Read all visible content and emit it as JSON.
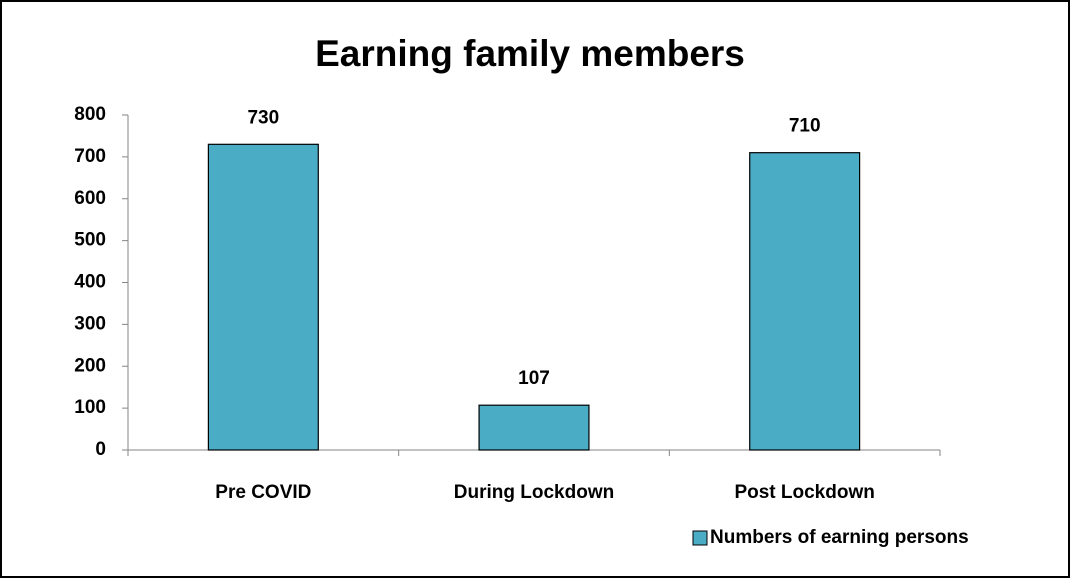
{
  "chart_data": {
    "type": "bar",
    "title": "Earning family members",
    "categories": [
      "Pre COVID",
      "During Lockdown",
      "Post Lockdown"
    ],
    "series": [
      {
        "name": "Numbers of earning persons",
        "color": "#4bacc6",
        "values": [
          730,
          107,
          710
        ]
      }
    ],
    "ylim": [
      0,
      800
    ],
    "yticks": [
      0,
      100,
      200,
      300,
      400,
      500,
      600,
      700,
      800
    ],
    "legend": "bottom-right",
    "data_labels": true
  }
}
